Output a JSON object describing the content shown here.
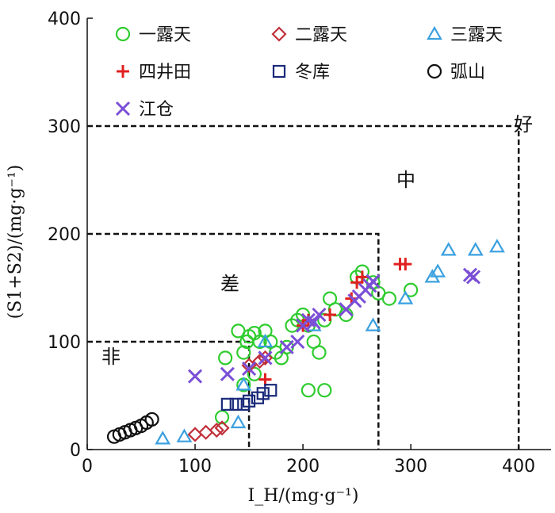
{
  "chart_data": {
    "type": "scatter",
    "xlabel": "I_H/(mg·g⁻¹)",
    "ylabel": "(S1+S2)/(mg·g⁻¹)",
    "xlim": [
      0,
      430
    ],
    "ylim": [
      0,
      400
    ],
    "x_ticks": [
      "0",
      "100",
      "200",
      "300",
      "400"
    ],
    "y_ticks": [
      "0",
      "100",
      "200",
      "300",
      "400"
    ],
    "grid": false,
    "legend_position": "top-left, three columns inside plot",
    "zones": [
      {
        "label": "非",
        "x_max": 150,
        "y_max": 100
      },
      {
        "label": "差",
        "x_max": 270,
        "y_max": 200
      },
      {
        "label": "中",
        "x_max": 400,
        "y_max": 300
      },
      {
        "label": "好",
        "x_max": null,
        "y_max": null
      }
    ],
    "series": [
      {
        "name": "一露天",
        "marker": "circle",
        "color": "#2ecc2e",
        "points": [
          [
            125,
            30
          ],
          [
            128,
            85
          ],
          [
            140,
            110
          ],
          [
            145,
            90
          ],
          [
            148,
            100
          ],
          [
            150,
            105
          ],
          [
            155,
            108
          ],
          [
            160,
            100
          ],
          [
            165,
            110
          ],
          [
            170,
            100
          ],
          [
            175,
            90
          ],
          [
            180,
            85
          ],
          [
            185,
            95
          ],
          [
            190,
            115
          ],
          [
            195,
            120
          ],
          [
            200,
            125
          ],
          [
            205,
            115
          ],
          [
            210,
            100
          ],
          [
            215,
            90
          ],
          [
            220,
            120
          ],
          [
            225,
            140
          ],
          [
            230,
            130
          ],
          [
            240,
            125
          ],
          [
            250,
            160
          ],
          [
            255,
            165
          ],
          [
            265,
            155
          ],
          [
            270,
            145
          ],
          [
            280,
            140
          ],
          [
            300,
            148
          ],
          [
            205,
            55
          ],
          [
            220,
            55
          ],
          [
            155,
            70
          ],
          [
            145,
            60
          ]
        ]
      },
      {
        "name": "二露天",
        "marker": "diamond",
        "color": "#c0303a",
        "points": [
          [
            100,
            14
          ],
          [
            110,
            16
          ],
          [
            120,
            18
          ],
          [
            125,
            20
          ],
          [
            150,
            78
          ],
          [
            160,
            82
          ],
          [
            165,
            85
          ]
        ]
      },
      {
        "name": "三露天",
        "marker": "triangle",
        "color": "#3aa0e0",
        "points": [
          [
            70,
            10
          ],
          [
            90,
            12
          ],
          [
            140,
            25
          ],
          [
            145,
            60
          ],
          [
            165,
            100
          ],
          [
            210,
            115
          ],
          [
            265,
            115
          ],
          [
            295,
            140
          ],
          [
            320,
            160
          ],
          [
            325,
            165
          ],
          [
            335,
            185
          ],
          [
            360,
            185
          ],
          [
            380,
            188
          ]
        ]
      },
      {
        "name": "四井田",
        "marker": "plus",
        "color": "#e02020",
        "points": [
          [
            165,
            65
          ],
          [
            200,
            115
          ],
          [
            205,
            120
          ],
          [
            225,
            125
          ],
          [
            245,
            140
          ],
          [
            250,
            155
          ],
          [
            255,
            160
          ],
          [
            290,
            172
          ],
          [
            295,
            172
          ]
        ]
      },
      {
        "name": "冬库",
        "marker": "square",
        "color": "#1a2a7a",
        "points": [
          [
            130,
            42
          ],
          [
            138,
            42
          ],
          [
            145,
            42
          ],
          [
            150,
            45
          ],
          [
            158,
            48
          ],
          [
            163,
            52
          ],
          [
            170,
            55
          ]
        ]
      },
      {
        "name": "弧山",
        "marker": "circle",
        "color": "#111111",
        "points": [
          [
            25,
            12
          ],
          [
            30,
            14
          ],
          [
            35,
            16
          ],
          [
            40,
            18
          ],
          [
            45,
            20
          ],
          [
            50,
            22
          ],
          [
            55,
            25
          ],
          [
            60,
            28
          ]
        ]
      },
      {
        "name": "江仓",
        "marker": "x",
        "color": "#7b4fd6",
        "points": [
          [
            100,
            68
          ],
          [
            130,
            70
          ],
          [
            150,
            75
          ],
          [
            165,
            85
          ],
          [
            185,
            95
          ],
          [
            195,
            100
          ],
          [
            200,
            115
          ],
          [
            205,
            120
          ],
          [
            210,
            118
          ],
          [
            215,
            125
          ],
          [
            240,
            130
          ],
          [
            248,
            138
          ],
          [
            252,
            142
          ],
          [
            258,
            148
          ],
          [
            262,
            152
          ],
          [
            265,
            156
          ],
          [
            355,
            162
          ],
          [
            358,
            160
          ]
        ]
      }
    ]
  }
}
